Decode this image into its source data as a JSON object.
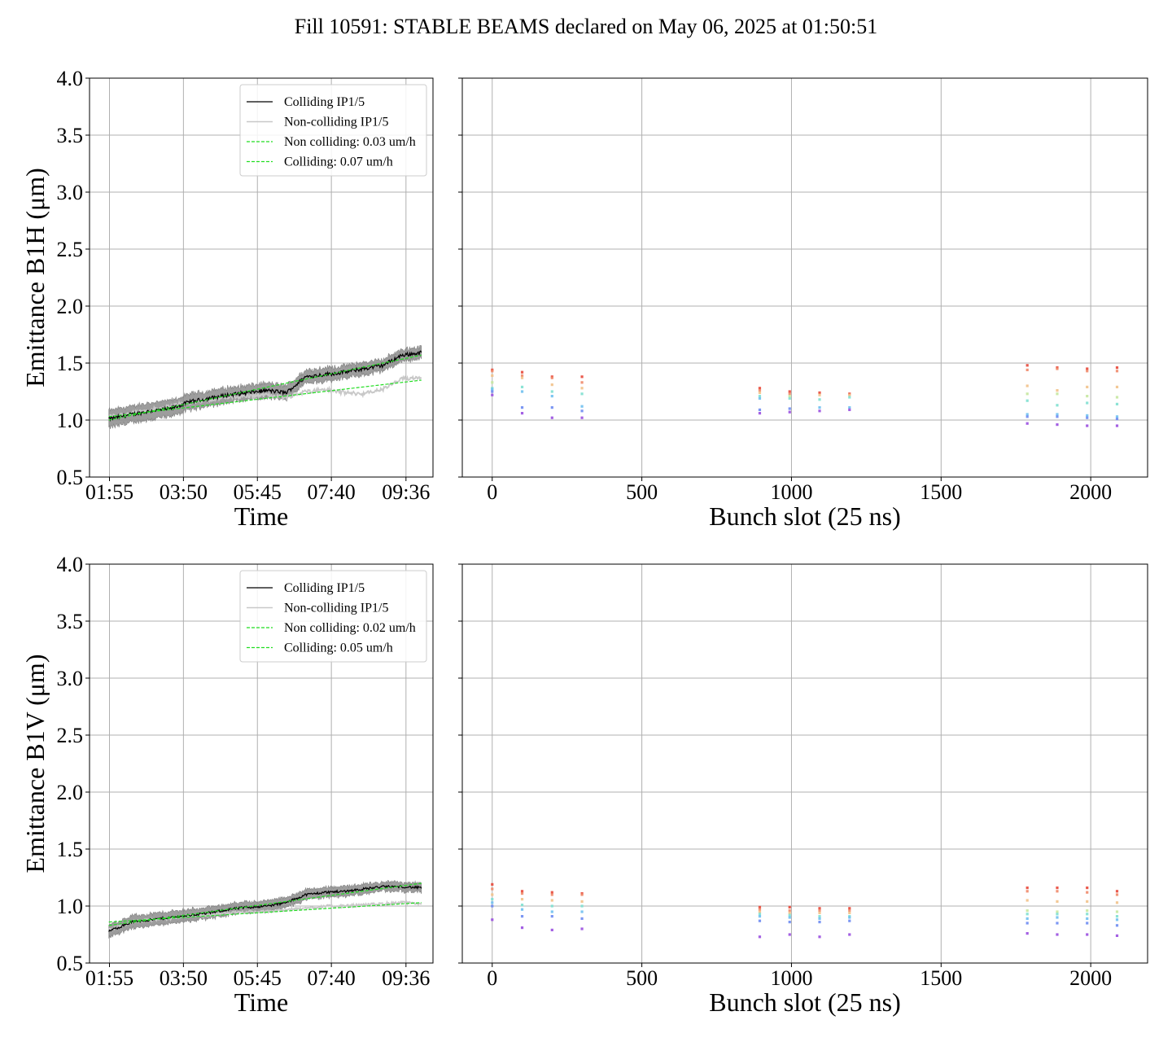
{
  "title": "Fill 10591: STABLE BEAMS declared on May 06, 2025 at 01:50:51",
  "colors": {
    "colliding": "#000000",
    "colliding_band": "#8c8c8c",
    "noncolliding": "#c8c8c8",
    "fit": "#22dd22",
    "grid": "#b0b0b0"
  },
  "chart_data": [
    {
      "id": "time-b1h",
      "type": "line",
      "xlabel": "Time",
      "ylabel": "Emittance B1H (μm)",
      "x_ticks": [
        "01:55",
        "03:50",
        "05:45",
        "07:40",
        "09:36"
      ],
      "x_tick_hours": [
        1.9167,
        3.8333,
        5.75,
        7.6667,
        9.6
      ],
      "xlim_hours": [
        1.4,
        10.3
      ],
      "ylim": [
        0.5,
        4.0
      ],
      "y_ticks": [
        "0.5",
        "1.0",
        "1.5",
        "2.0",
        "2.5",
        "3.0",
        "3.5",
        "4.0"
      ],
      "grid": true,
      "legend": {
        "position": "upper-right",
        "entries": [
          "Colliding IP1/5",
          "Non-colliding IP1/5",
          "Non colliding: 0.03 um/h",
          "Colliding: 0.07 um/h"
        ]
      },
      "series": [
        {
          "name": "Colliding IP1/5",
          "x": [
            1.9,
            2.5,
            3.0,
            3.5,
            4.0,
            4.5,
            5.0,
            5.5,
            6.0,
            6.5,
            7.0,
            7.5,
            8.0,
            8.5,
            9.0,
            9.5,
            10.0
          ],
          "y": [
            1.01,
            1.05,
            1.08,
            1.1,
            1.16,
            1.19,
            1.22,
            1.24,
            1.26,
            1.24,
            1.38,
            1.4,
            1.42,
            1.45,
            1.48,
            1.57,
            1.59
          ]
        },
        {
          "name": "Non-colliding IP1/5",
          "x": [
            1.9,
            2.5,
            3.0,
            3.5,
            4.0,
            4.5,
            5.0,
            5.5,
            6.0,
            6.5,
            7.0,
            7.5,
            8.0,
            8.5,
            9.0,
            9.5,
            10.0
          ],
          "y": [
            1.03,
            1.06,
            1.09,
            1.12,
            1.16,
            1.18,
            1.2,
            1.21,
            1.22,
            1.2,
            1.25,
            1.27,
            1.24,
            1.23,
            1.27,
            1.36,
            1.38
          ]
        },
        {
          "name": "Non colliding: 0.03 um/h",
          "x": [
            1.9,
            10.0
          ],
          "y": [
            1.03,
            1.35
          ]
        },
        {
          "name": "Colliding: 0.07 um/h",
          "x": [
            1.9,
            10.0
          ],
          "y": [
            1.0,
            1.57
          ]
        }
      ]
    },
    {
      "id": "bunch-b1h",
      "type": "scatter",
      "xlabel": "Bunch slot (25 ns)",
      "x_ticks": [
        "0",
        "500",
        "1000",
        "1500",
        "2000"
      ],
      "xlim": [
        -100,
        2190
      ],
      "ylim": [
        0.5,
        4.0
      ],
      "grid": true,
      "slots": [
        0,
        100,
        200,
        300,
        894,
        994,
        1094,
        1194,
        1788,
        1888,
        1988,
        2088
      ],
      "columns": [
        [
          1.44,
          1.43,
          1.39,
          1.33,
          1.28,
          1.27,
          1.25,
          1.22
        ],
        [
          1.42,
          1.39,
          1.37,
          1.29,
          1.25,
          1.11,
          1.06
        ],
        [
          1.38,
          1.37,
          1.31,
          1.25,
          1.21,
          1.11,
          1.02
        ],
        [
          1.38,
          1.33,
          1.28,
          1.23,
          1.12,
          1.08,
          1.02
        ],
        [
          1.28,
          1.26,
          1.24,
          1.21,
          1.19,
          1.09,
          1.06
        ],
        [
          1.25,
          1.23,
          1.21,
          1.19,
          1.1,
          1.07
        ],
        [
          1.24,
          1.22,
          1.18,
          1.11,
          1.08
        ],
        [
          1.23,
          1.22,
          1.2,
          1.11,
          1.09
        ],
        [
          1.48,
          1.44,
          1.3,
          1.23,
          1.17,
          1.05,
          1.03,
          0.97
        ],
        [
          1.46,
          1.45,
          1.26,
          1.23,
          1.13,
          1.05,
          1.03,
          0.96
        ],
        [
          1.45,
          1.43,
          1.29,
          1.21,
          1.15,
          1.04,
          1.02,
          0.95
        ],
        [
          1.46,
          1.43,
          1.29,
          1.2,
          1.14,
          1.03,
          1.01,
          0.95
        ]
      ]
    },
    {
      "id": "time-b1v",
      "type": "line",
      "xlabel": "Time",
      "ylabel": "Emittance B1V (μm)",
      "x_ticks": [
        "01:55",
        "03:50",
        "05:45",
        "07:40",
        "09:36"
      ],
      "x_tick_hours": [
        1.9167,
        3.8333,
        5.75,
        7.6667,
        9.6
      ],
      "xlim_hours": [
        1.4,
        10.3
      ],
      "ylim": [
        0.5,
        4.0
      ],
      "y_ticks": [
        "0.5",
        "1.0",
        "1.5",
        "2.0",
        "2.5",
        "3.0",
        "3.5",
        "4.0"
      ],
      "grid": true,
      "legend": {
        "position": "upper-right",
        "entries": [
          "Colliding IP1/5",
          "Non-colliding IP1/5",
          "Non colliding: 0.02 um/h",
          "Colliding: 0.05 um/h"
        ]
      },
      "series": [
        {
          "name": "Colliding IP1/5",
          "x": [
            1.9,
            2.5,
            3.0,
            3.5,
            4.0,
            4.5,
            5.0,
            5.5,
            6.0,
            6.5,
            7.0,
            7.5,
            8.0,
            8.5,
            9.0,
            9.5,
            10.0
          ],
          "y": [
            0.78,
            0.86,
            0.88,
            0.9,
            0.92,
            0.94,
            0.97,
            0.99,
            1.0,
            1.03,
            1.1,
            1.12,
            1.13,
            1.15,
            1.17,
            1.17,
            1.16
          ]
        },
        {
          "name": "Non-colliding IP1/5",
          "x": [
            1.9,
            2.5,
            3.0,
            3.5,
            4.0,
            4.5,
            5.0,
            5.5,
            6.0,
            6.5,
            7.0,
            7.5,
            8.0,
            8.5,
            9.0,
            9.5,
            10.0
          ],
          "y": [
            0.79,
            0.86,
            0.88,
            0.89,
            0.92,
            0.92,
            0.94,
            0.95,
            0.95,
            0.97,
            0.98,
            1.0,
            1.0,
            1.01,
            1.02,
            1.03,
            1.02
          ]
        },
        {
          "name": "Non colliding: 0.02 um/h",
          "x": [
            1.9,
            10.0
          ],
          "y": [
            0.86,
            1.03
          ]
        },
        {
          "name": "Colliding: 0.05 um/h",
          "x": [
            1.9,
            10.0
          ],
          "y": [
            0.83,
            1.2
          ]
        }
      ]
    },
    {
      "id": "bunch-b1v",
      "type": "scatter",
      "xlabel": "Bunch slot (25 ns)",
      "x_ticks": [
        "0",
        "500",
        "1000",
        "1500",
        "2000"
      ],
      "xlim": [
        -100,
        2190
      ],
      "ylim": [
        0.5,
        4.0
      ],
      "grid": true,
      "slots": [
        0,
        100,
        200,
        300,
        894,
        994,
        1094,
        1194,
        1788,
        1888,
        1988,
        2088
      ],
      "columns": [
        [
          1.19,
          1.15,
          1.1,
          1.06,
          1.03,
          1.0,
          0.88
        ],
        [
          1.13,
          1.11,
          1.06,
          1.01,
          0.97,
          0.91,
          0.81
        ],
        [
          1.12,
          1.1,
          1.05,
          1.0,
          0.95,
          0.91,
          0.79
        ],
        [
          1.11,
          1.1,
          1.04,
          1.0,
          0.95,
          0.89,
          0.8
        ],
        [
          0.99,
          0.97,
          0.95,
          0.93,
          0.91,
          0.87,
          0.73
        ],
        [
          0.99,
          0.96,
          0.94,
          0.92,
          0.9,
          0.86,
          0.75
        ],
        [
          0.98,
          0.96,
          0.94,
          0.91,
          0.89,
          0.86,
          0.73
        ],
        [
          0.98,
          0.96,
          0.94,
          0.91,
          0.9,
          0.87,
          0.75
        ],
        [
          1.16,
          1.13,
          1.05,
          0.96,
          0.93,
          0.89,
          0.85,
          0.76
        ],
        [
          1.16,
          1.13,
          1.04,
          0.95,
          0.93,
          0.9,
          0.85,
          0.75
        ],
        [
          1.16,
          1.12,
          1.04,
          0.96,
          0.93,
          0.89,
          0.85,
          0.75
        ],
        [
          1.13,
          1.1,
          1.03,
          0.95,
          0.91,
          0.88,
          0.83,
          0.74
        ]
      ]
    }
  ]
}
